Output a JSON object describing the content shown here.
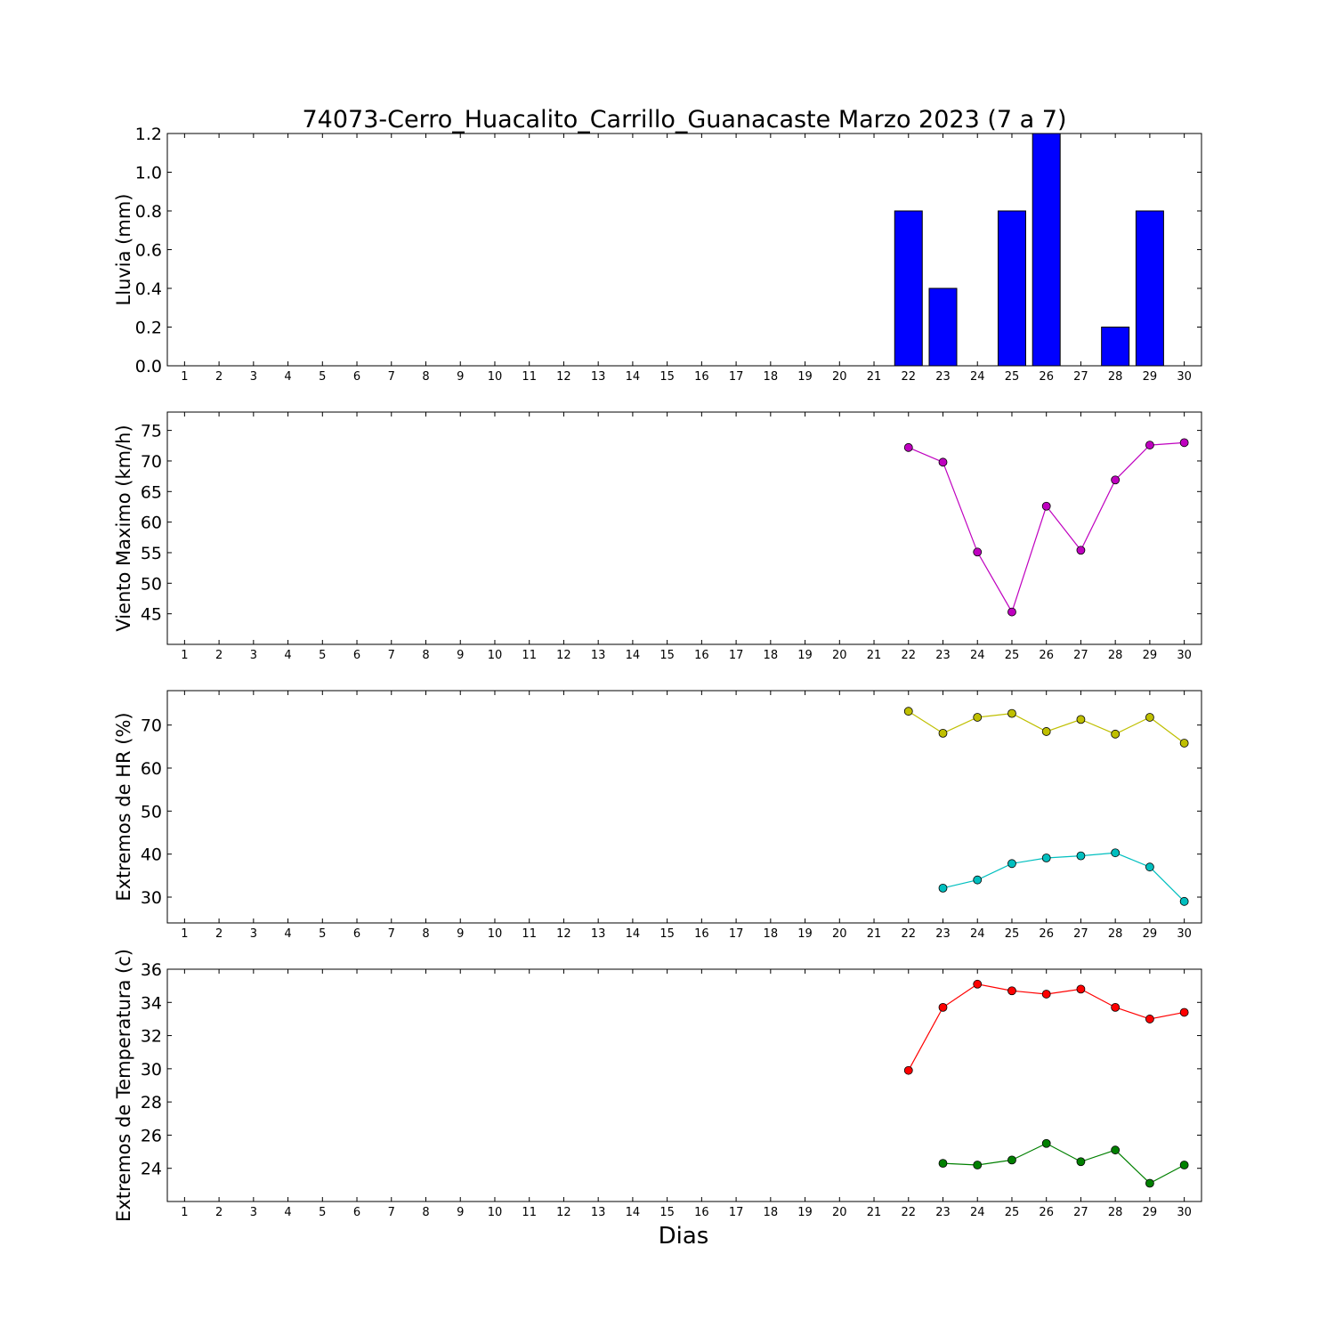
{
  "title": "74073-Cerro_Huacalito_Carrillo_Guanacaste Marzo 2023  (7 a 7)",
  "xlabel": "Dias",
  "colors": {
    "rain": "#0000ff",
    "wind": "#bf00bf",
    "hr_max": "#bfbf00",
    "hr_min": "#00bfbf",
    "temp_max": "#ff0000",
    "temp_min": "#008000"
  },
  "chart_data": [
    {
      "type": "bar",
      "ylabel": "Lluvia (mm)",
      "ylim": [
        0,
        1.2
      ],
      "yticks": [
        "0.0",
        "0.2",
        "0.4",
        "0.6",
        "0.8",
        "1.0",
        "1.2"
      ],
      "xticks": [
        "1",
        "2",
        "3",
        "4",
        "5",
        "6",
        "7",
        "8",
        "9",
        "10",
        "11",
        "12",
        "13",
        "14",
        "15",
        "16",
        "17",
        "18",
        "19",
        "20",
        "21",
        "22",
        "23",
        "24",
        "25",
        "26",
        "27",
        "28",
        "29",
        "30"
      ],
      "series": [
        {
          "x": [
            22,
            23,
            25,
            26,
            28,
            29
          ],
          "values": [
            0.8,
            0.4,
            0.8,
            1.2,
            0.2,
            0.8
          ]
        }
      ]
    },
    {
      "type": "line",
      "ylabel": "Viento Maximo (km/h)",
      "ylim": [
        40,
        78
      ],
      "yticks": [
        "45",
        "50",
        "55",
        "60",
        "65",
        "70",
        "75"
      ],
      "xticks": [
        "1",
        "2",
        "3",
        "4",
        "5",
        "6",
        "7",
        "8",
        "9",
        "10",
        "11",
        "12",
        "13",
        "14",
        "15",
        "16",
        "17",
        "18",
        "19",
        "20",
        "21",
        "22",
        "23",
        "24",
        "25",
        "26",
        "27",
        "28",
        "29",
        "30"
      ],
      "series": [
        {
          "x": [
            22,
            23,
            24,
            25,
            26,
            27,
            28,
            29,
            30
          ],
          "values": [
            72.2,
            69.8,
            55.1,
            45.3,
            62.6,
            55.4,
            66.9,
            72.6,
            73.0
          ]
        }
      ]
    },
    {
      "type": "line",
      "ylabel": "Extremos de HR (%)",
      "ylim": [
        24,
        78
      ],
      "yticks": [
        "30",
        "40",
        "50",
        "60",
        "70"
      ],
      "xticks": [
        "1",
        "2",
        "3",
        "4",
        "5",
        "6",
        "7",
        "8",
        "9",
        "10",
        "11",
        "12",
        "13",
        "14",
        "15",
        "16",
        "17",
        "18",
        "19",
        "20",
        "21",
        "22",
        "23",
        "24",
        "25",
        "26",
        "27",
        "28",
        "29",
        "30"
      ],
      "series": [
        {
          "x": [
            22,
            23,
            24,
            25,
            26,
            27,
            28,
            29,
            30
          ],
          "values": [
            73.2,
            68.1,
            71.8,
            72.7,
            68.5,
            71.3,
            67.9,
            71.8,
            65.8
          ]
        },
        {
          "x": [
            23,
            24,
            25,
            26,
            27,
            28,
            29,
            30
          ],
          "values": [
            32.1,
            34.0,
            37.8,
            39.1,
            39.6,
            40.3,
            37.0,
            29.0
          ]
        }
      ]
    },
    {
      "type": "line",
      "ylabel": "Extremos de Temperatura (c)",
      "ylim": [
        22,
        36
      ],
      "yticks": [
        "24",
        "26",
        "28",
        "30",
        "32",
        "34",
        "36"
      ],
      "xticks": [
        "1",
        "2",
        "3",
        "4",
        "5",
        "6",
        "7",
        "8",
        "9",
        "10",
        "11",
        "12",
        "13",
        "14",
        "15",
        "16",
        "17",
        "18",
        "19",
        "20",
        "21",
        "22",
        "23",
        "24",
        "25",
        "26",
        "27",
        "28",
        "29",
        "30"
      ],
      "series": [
        {
          "x": [
            22,
            23,
            24,
            25,
            26,
            27,
            28,
            29,
            30
          ],
          "values": [
            29.9,
            33.7,
            35.1,
            34.7,
            34.5,
            34.8,
            33.7,
            33.0,
            33.4
          ]
        },
        {
          "x": [
            23,
            24,
            25,
            26,
            27,
            28,
            29,
            30
          ],
          "values": [
            24.3,
            24.2,
            24.5,
            25.5,
            24.4,
            25.1,
            23.1,
            24.2
          ]
        }
      ]
    }
  ]
}
